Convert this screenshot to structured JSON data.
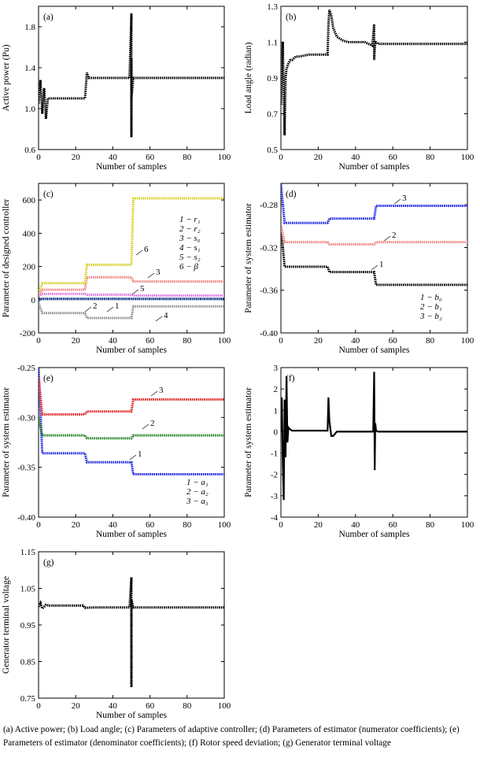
{
  "chart_data": [
    {
      "id": "a",
      "type": "scatter",
      "panel_label": "(a)",
      "xlabel": "Number of samples",
      "ylabel": "Active power (Pu)",
      "xlim": [
        0,
        100
      ],
      "ylim": [
        0.6,
        2.0
      ],
      "xticks": [
        0,
        20,
        40,
        60,
        80,
        100
      ],
      "yticks": [
        0.6,
        1.0,
        1.4,
        1.8
      ],
      "series": [
        {
          "color": "#000000",
          "x": [
            0,
            1,
            2,
            3,
            4,
            5,
            6,
            8,
            10,
            14,
            18,
            22,
            25,
            26,
            27,
            30,
            35,
            40,
            45,
            49,
            50,
            50,
            50,
            50,
            51,
            52,
            55,
            60,
            70,
            80,
            90,
            100
          ],
          "y": [
            1.05,
            1.28,
            0.95,
            1.2,
            0.9,
            1.1,
            1.1,
            1.1,
            1.1,
            1.1,
            1.1,
            1.1,
            1.1,
            1.35,
            1.3,
            1.3,
            1.3,
            1.3,
            1.3,
            1.3,
            1.93,
            0.72,
            1.5,
            1.1,
            1.3,
            1.3,
            1.3,
            1.3,
            1.3,
            1.3,
            1.3,
            1.3
          ]
        }
      ]
    },
    {
      "id": "b",
      "type": "scatter",
      "panel_label": "(b)",
      "xlabel": "Number of samples",
      "ylabel": "Load angle (radian)",
      "xlim": [
        0,
        100
      ],
      "ylim": [
        0.5,
        1.3
      ],
      "xticks": [
        0,
        20,
        40,
        60,
        80,
        100
      ],
      "yticks": [
        0.5,
        0.7,
        0.9,
        1.1,
        1.3
      ],
      "series": [
        {
          "color": "#000000",
          "x": [
            0,
            1,
            1.5,
            2,
            2.5,
            3,
            4,
            5,
            6,
            8,
            10,
            15,
            20,
            25,
            25.5,
            26,
            27,
            28,
            30,
            33,
            36,
            40,
            45,
            49,
            50,
            50,
            50.5,
            51,
            52,
            55,
            60,
            70,
            80,
            90,
            100
          ],
          "y": [
            0.75,
            1.1,
            0.8,
            0.58,
            0.9,
            0.95,
            0.98,
            1.0,
            1.0,
            1.02,
            1.02,
            1.03,
            1.03,
            1.03,
            1.2,
            1.28,
            1.25,
            1.18,
            1.13,
            1.11,
            1.1,
            1.1,
            1.1,
            1.08,
            1.2,
            1.0,
            1.1,
            1.1,
            1.09,
            1.09,
            1.09,
            1.09,
            1.09,
            1.09,
            1.09
          ]
        }
      ]
    },
    {
      "id": "c",
      "type": "scatter",
      "panel_label": "(c)",
      "xlabel": "Number of samples",
      "ylabel": "Parameter of designed controller",
      "xlim": [
        0,
        100
      ],
      "ylim": [
        -200,
        700
      ],
      "xticks": [
        0,
        20,
        40,
        60,
        80,
        100
      ],
      "yticks": [
        -200,
        0,
        200,
        400,
        600
      ],
      "legend": [
        "1 − r₁",
        "2 − r₂",
        "3 − s₀",
        "4 − s₁",
        "5 − s₂",
        "6 − β"
      ],
      "series": [
        {
          "name": "1",
          "color": "#000000",
          "x": [
            0,
            2,
            25,
            26,
            50,
            51,
            100
          ],
          "y": [
            5,
            5,
            5,
            5,
            5,
            5,
            5
          ]
        },
        {
          "name": "2",
          "color": "#3060c0",
          "x": [
            0,
            2,
            25,
            26,
            50,
            51,
            100
          ],
          "y": [
            -5,
            5,
            5,
            5,
            5,
            5,
            5
          ]
        },
        {
          "name": "3",
          "color": "#f08080",
          "x": [
            0,
            2,
            25,
            26,
            50,
            51,
            100
          ],
          "y": [
            30,
            60,
            60,
            135,
            135,
            110,
            110
          ]
        },
        {
          "name": "4",
          "color": "#909090",
          "x": [
            0,
            2,
            25,
            26,
            50,
            51,
            100
          ],
          "y": [
            -20,
            -80,
            -80,
            -110,
            -110,
            -40,
            -40
          ]
        },
        {
          "name": "5",
          "color": "#e070e0",
          "x": [
            0,
            2,
            25,
            26,
            50,
            51,
            100
          ],
          "y": [
            20,
            35,
            35,
            30,
            30,
            25,
            25
          ]
        },
        {
          "name": "6",
          "color": "#d8d020",
          "x": [
            0,
            2,
            25,
            26,
            50,
            51,
            100
          ],
          "y": [
            40,
            100,
            100,
            210,
            210,
            610,
            610
          ]
        }
      ],
      "annotations": [
        "1",
        "2",
        "3",
        "4",
        "5",
        "6"
      ]
    },
    {
      "id": "d",
      "type": "scatter",
      "panel_label": "(d)",
      "xlabel": "Number of samples",
      "ylabel": "Parameter of system estimator",
      "xlim": [
        0,
        100
      ],
      "ylim": [
        -0.4,
        -0.26
      ],
      "xticks": [
        0,
        20,
        40,
        60,
        80,
        100
      ],
      "yticks": [
        -0.4,
        -0.36,
        -0.32,
        -0.28
      ],
      "legend": [
        "1 − b₀",
        "2 − b₁",
        "3 − b₂"
      ],
      "series": [
        {
          "name": "1",
          "color": "#000000",
          "x": [
            0,
            2,
            25,
            26,
            50,
            51,
            100
          ],
          "y": [
            -0.3,
            -0.338,
            -0.338,
            -0.343,
            -0.343,
            -0.355,
            -0.355
          ]
        },
        {
          "name": "2",
          "color": "#f08080",
          "x": [
            0,
            2,
            25,
            26,
            50,
            51,
            100
          ],
          "y": [
            -0.3,
            -0.315,
            -0.315,
            -0.317,
            -0.317,
            -0.315,
            -0.315
          ]
        },
        {
          "name": "3",
          "color": "#1a20e0",
          "x": [
            0,
            2,
            25,
            26,
            50,
            51,
            100
          ],
          "y": [
            -0.26,
            -0.297,
            -0.297,
            -0.293,
            -0.293,
            -0.281,
            -0.281
          ]
        }
      ],
      "annotations": [
        "1",
        "2",
        "3"
      ]
    },
    {
      "id": "e",
      "type": "scatter",
      "panel_label": "(e)",
      "xlabel": "Number of samples",
      "ylabel": "Parameter of system estimator",
      "xlim": [
        0,
        100
      ],
      "ylim": [
        -0.4,
        -0.25
      ],
      "xticks": [
        0,
        20,
        40,
        60,
        80,
        100
      ],
      "yticks": [
        -0.4,
        -0.35,
        -0.3,
        -0.25
      ],
      "legend": [
        "1 − a₁",
        "2 − a₂",
        "3 − a₃"
      ],
      "series": [
        {
          "name": "1",
          "color": "#1a20e0",
          "x": [
            0,
            2,
            25,
            26,
            50,
            51,
            100
          ],
          "y": [
            -0.25,
            -0.336,
            -0.336,
            -0.345,
            -0.345,
            -0.357,
            -0.357
          ]
        },
        {
          "name": "2",
          "color": "#208020",
          "x": [
            0,
            2,
            25,
            26,
            50,
            51,
            100
          ],
          "y": [
            -0.3,
            -0.318,
            -0.318,
            -0.321,
            -0.321,
            -0.318,
            -0.318
          ]
        },
        {
          "name": "3",
          "color": "#e02020",
          "x": [
            0,
            2,
            25,
            26,
            50,
            51,
            100
          ],
          "y": [
            -0.26,
            -0.297,
            -0.297,
            -0.294,
            -0.294,
            -0.282,
            -0.282
          ]
        }
      ],
      "annotations": [
        "1",
        "2",
        "3"
      ]
    },
    {
      "id": "f",
      "type": "line",
      "panel_label": "(f)",
      "xlabel": "Number of samples",
      "ylabel": "Parameter of system estimator",
      "xlim": [
        0,
        100
      ],
      "ylim": [
        -4,
        3
      ],
      "xticks": [
        0,
        20,
        40,
        60,
        80,
        100
      ],
      "yticks": [
        -4,
        -3,
        -2,
        -1,
        0,
        1,
        2,
        3
      ],
      "series": [
        {
          "color": "#000000",
          "x": [
            0,
            0.5,
            1,
            1.5,
            2,
            2.5,
            3,
            3.5,
            4,
            5,
            6,
            8,
            10,
            15,
            20,
            24,
            25,
            25.5,
            26,
            27,
            28,
            30,
            35,
            40,
            45,
            49,
            49.5,
            50,
            50.3,
            50.6,
            51,
            52,
            55,
            60,
            70,
            80,
            90,
            100
          ],
          "y": [
            0,
            1.6,
            -1.5,
            -3.2,
            1.5,
            -1.2,
            2.6,
            -0.5,
            0.2,
            0.1,
            0.05,
            0.05,
            0.05,
            0.05,
            0.05,
            0.05,
            0.05,
            1.6,
            0.5,
            -0.2,
            -0.2,
            0,
            0,
            0,
            0,
            0,
            0,
            2.8,
            -1.8,
            0.4,
            0.05,
            0,
            0,
            0,
            0,
            0,
            0,
            0
          ]
        }
      ]
    },
    {
      "id": "g",
      "type": "scatter",
      "panel_label": "(g)",
      "xlabel": "Number of samples",
      "ylabel": "Generator terminal voltage",
      "xlim": [
        0,
        100
      ],
      "ylim": [
        0.75,
        1.15
      ],
      "xticks": [
        0,
        20,
        40,
        60,
        80,
        100
      ],
      "yticks": [
        0.75,
        0.85,
        0.95,
        1.05,
        1.15
      ],
      "series": [
        {
          "color": "#000000",
          "x": [
            0,
            1,
            2,
            3,
            4,
            6,
            10,
            15,
            20,
            24,
            25,
            26,
            30,
            40,
            48,
            49,
            50,
            50,
            50,
            50,
            51,
            55,
            60,
            70,
            80,
            90,
            100
          ],
          "y": [
            1.0,
            1.01,
            0.995,
            1.0,
            1.005,
            1.003,
            1.003,
            1.003,
            1.003,
            1.003,
            0.997,
            0.997,
            0.998,
            0.998,
            0.998,
            0.998,
            1.08,
            0.78,
            0.93,
            1.02,
            0.998,
            0.998,
            0.998,
            0.998,
            0.998,
            0.998,
            0.998
          ]
        }
      ]
    }
  ],
  "caption": "(a) Active power; (b)  Load  angle;  (c)  Parameters  of  adaptive controller;   (d)    Parameters of estimator (numerator  coefficients);  (e)  Parameters  of  estimator (denominator coefficients); (f) Rotor speed  deviation;   (g)   Generator   terminal  voltage"
}
